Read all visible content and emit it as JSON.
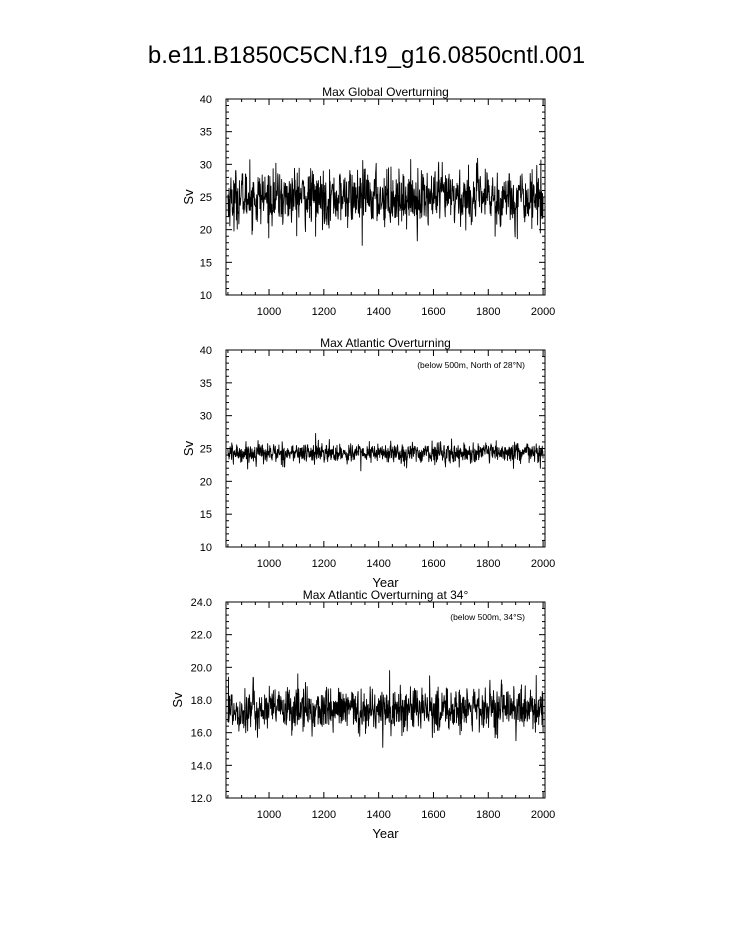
{
  "page": {
    "title": "b.e11.B1850C5CN.f19_g16.0850cntl.001"
  },
  "chart_data": [
    {
      "type": "line",
      "title": "Max Global Overturning",
      "subtitle": "",
      "xlabel": "",
      "ylabel": "Sv",
      "xlim": [
        843,
        2007
      ],
      "ylim": [
        10,
        40
      ],
      "xticks": [
        1000,
        1200,
        1400,
        1600,
        1800,
        2000
      ],
      "xtick_labels": [
        "1000",
        "1200",
        "1400",
        "1600",
        "1800",
        "2000"
      ],
      "yticks": [
        10,
        15,
        20,
        25,
        30,
        35,
        40
      ],
      "ytick_labels": [
        "10",
        "15",
        "20",
        "25",
        "30",
        "35",
        "40"
      ],
      "grid": false,
      "line_color": "#000000",
      "series": [
        {
          "x_start": 850,
          "x_end": 2000,
          "x_step": 1,
          "mean": 24.9,
          "variability": 2.0,
          "notes_range": [
            17.5,
            30.8
          ],
          "anchors": [
            {
              "x": 852,
              "y": 22.0
            },
            {
              "x": 872,
              "y": 19.8
            },
            {
              "x": 930,
              "y": 30.7
            },
            {
              "x": 1050,
              "y": 20.8
            },
            {
              "x": 1110,
              "y": 29.4
            },
            {
              "x": 1170,
              "y": 19.0
            },
            {
              "x": 1340,
              "y": 17.6
            },
            {
              "x": 1390,
              "y": 29.3
            },
            {
              "x": 1445,
              "y": 29.6
            },
            {
              "x": 1825,
              "y": 19.0
            },
            {
              "x": 1960,
              "y": 29.2
            },
            {
              "x": 1990,
              "y": 19.5
            }
          ]
        }
      ]
    },
    {
      "type": "line",
      "title": "Max Atlantic Overturning",
      "subtitle": "(below 500m, North of 28°N)",
      "xlabel": "Year",
      "ylabel": "Sv",
      "xlim": [
        843,
        2007
      ],
      "ylim": [
        10,
        40
      ],
      "xticks": [
        1000,
        1200,
        1400,
        1600,
        1800,
        2000
      ],
      "xtick_labels": [
        "1000",
        "1200",
        "1400",
        "1600",
        "1800",
        "2000"
      ],
      "yticks": [
        10,
        15,
        20,
        25,
        30,
        35,
        40
      ],
      "ytick_labels": [
        "10",
        "15",
        "20",
        "25",
        "30",
        "35",
        "40"
      ],
      "grid": false,
      "line_color": "#000000",
      "series": [
        {
          "x_start": 850,
          "x_end": 2000,
          "x_step": 1,
          "mean": 24.3,
          "variability": 0.7,
          "anchors": [
            {
              "x": 870,
              "y": 22.6
            },
            {
              "x": 960,
              "y": 26.2
            },
            {
              "x": 1170,
              "y": 27.3
            },
            {
              "x": 1335,
              "y": 21.6
            },
            {
              "x": 1620,
              "y": 25.9
            },
            {
              "x": 1990,
              "y": 22.0
            }
          ]
        }
      ]
    },
    {
      "type": "line",
      "title": "Max Atlantic Overturning at 34°",
      "subtitle": "(below 500m, 34°S)",
      "xlabel": "Year",
      "ylabel": "Sv",
      "xlim": [
        843,
        2007
      ],
      "ylim": [
        12,
        24
      ],
      "xticks": [
        1000,
        1200,
        1400,
        1600,
        1800,
        2000
      ],
      "xtick_labels": [
        "1000",
        "1200",
        "1400",
        "1600",
        "1800",
        "2000"
      ],
      "yticks": [
        12,
        14,
        16,
        18,
        20,
        22,
        24
      ],
      "ytick_labels": [
        "12.0",
        "14.0",
        "16.0",
        "18.0",
        "20.0",
        "22.0",
        "24.0"
      ],
      "grid": false,
      "line_color": "#000000",
      "series": [
        {
          "x_start": 850,
          "x_end": 2000,
          "x_step": 1,
          "mean": 17.4,
          "variability": 0.65,
          "anchors": [
            {
              "x": 852,
              "y": 19.4
            },
            {
              "x": 1105,
              "y": 19.6
            },
            {
              "x": 1440,
              "y": 19.8
            },
            {
              "x": 1825,
              "y": 15.7
            },
            {
              "x": 1975,
              "y": 19.5
            },
            {
              "x": 2000,
              "y": 16.0
            }
          ]
        }
      ]
    }
  ]
}
